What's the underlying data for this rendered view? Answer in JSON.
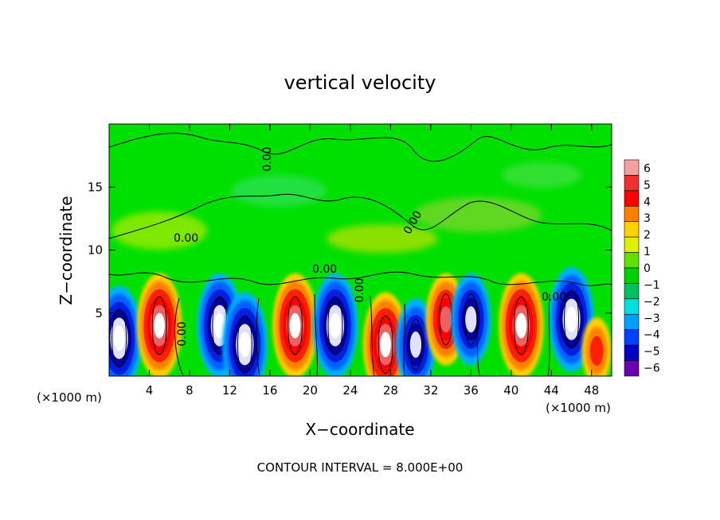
{
  "chart_data": {
    "type": "heatmap",
    "title": "vertical velocity",
    "xlabel": "X−coordinate",
    "ylabel": "Z−coordinate",
    "x_unit_left": "(×1000 m)",
    "x_unit_right": "(×1000 m)",
    "footer": "CONTOUR INTERVAL = 8.000E+00",
    "xlim": [
      0,
      50
    ],
    "ylim": [
      0,
      20
    ],
    "x_ticks": [
      "4",
      "8",
      "12",
      "16",
      "20",
      "24",
      "28",
      "32",
      "36",
      "40",
      "44",
      "48"
    ],
    "y_ticks": [
      "5",
      "10",
      "15"
    ],
    "contour_labels": [
      "0.00",
      "0.00",
      "0.00",
      "0.00",
      "0.00",
      "0.00",
      "0.00"
    ],
    "colorbar": {
      "ticks": [
        "6",
        "5",
        "4",
        "3",
        "2",
        "1",
        "0",
        "−1",
        "−2",
        "−3",
        "−4",
        "−5",
        "−6"
      ],
      "colors": [
        "#f4a0a0",
        "#f03030",
        "#ff0000",
        "#ff8000",
        "#ffd000",
        "#e0f000",
        "#60e000",
        "#00d000",
        "#00c060",
        "#00e0e0",
        "#00a0ff",
        "#0040ff",
        "#0000c0",
        "#6a00b0"
      ]
    },
    "cells": [
      {
        "x": 1,
        "z": 3,
        "w": -6
      },
      {
        "x": 5,
        "z": 4,
        "w": 6
      },
      {
        "x": 11,
        "z": 4,
        "w": -6
      },
      {
        "x": 13.5,
        "z": 2.5,
        "w": -6
      },
      {
        "x": 18.5,
        "z": 4,
        "w": 6
      },
      {
        "x": 22.5,
        "z": 4,
        "w": -6
      },
      {
        "x": 27.5,
        "z": 2.5,
        "w": 6
      },
      {
        "x": 30.5,
        "z": 2.5,
        "w": -5
      },
      {
        "x": 33.5,
        "z": 4.5,
        "w": 5
      },
      {
        "x": 36,
        "z": 4.5,
        "w": -5
      },
      {
        "x": 41,
        "z": 4,
        "w": 6
      },
      {
        "x": 46,
        "z": 4.5,
        "w": -6
      },
      {
        "x": 48.5,
        "z": 2,
        "w": 3
      }
    ]
  }
}
